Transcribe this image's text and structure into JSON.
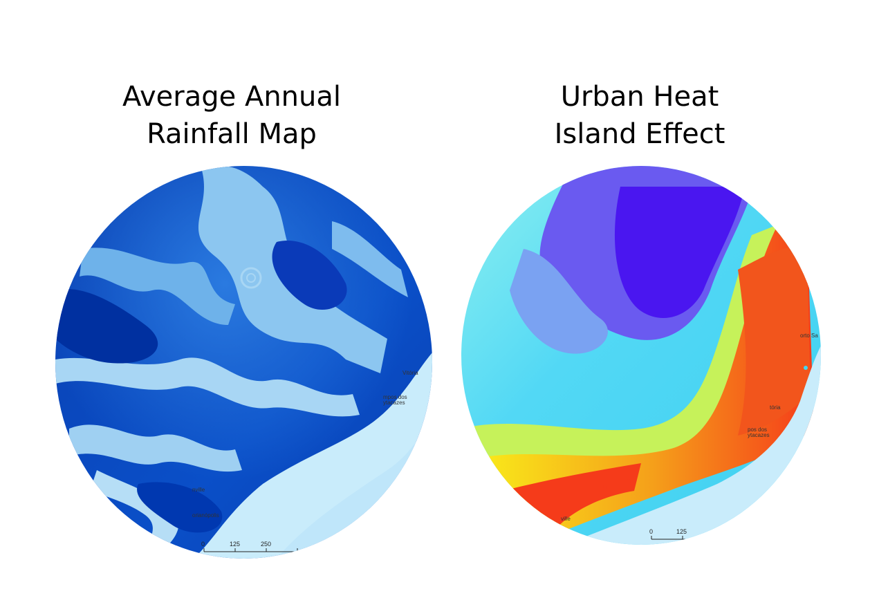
{
  "panels": [
    {
      "title": "Average Annual\nRainfall Map",
      "colors": {
        "dark": "#0033a0",
        "mid": "#1f6fd8",
        "light": "#9fd0f2",
        "ocean": "#c9ecfb"
      },
      "places": [
        "Vitória",
        "mpos dos",
        "ytacazes",
        "nville",
        "orianópolis"
      ],
      "scale_ticks": [
        "0",
        "125",
        "250"
      ]
    },
    {
      "title": "Urban Heat\nIsland Effect",
      "colors": {
        "cool": "#4a16f0",
        "mid": "#3fd9f5",
        "warm": "#f9e61a",
        "hot": "#f53b1a",
        "ocean": "#c9ecfb"
      },
      "places": [
        "orto Sa",
        "tória",
        "pos dos",
        "ytacazes",
        "ville"
      ],
      "scale_ticks": [
        "0",
        "125"
      ]
    }
  ]
}
